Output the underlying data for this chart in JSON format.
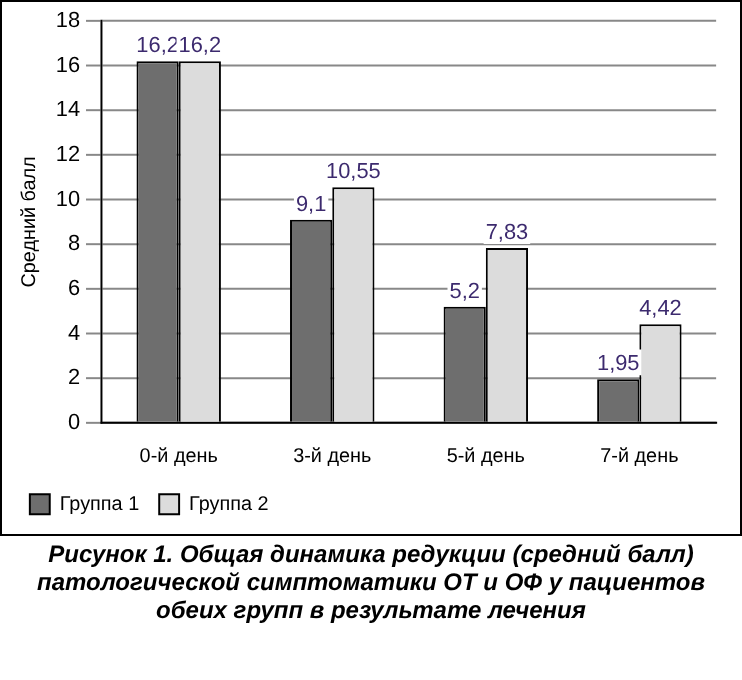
{
  "chart_data": {
    "type": "bar",
    "ylabel": "Средний балл",
    "categories": [
      "0-й день",
      "3-й день",
      "5-й день",
      "7-й день"
    ],
    "series": [
      {
        "name": "Группа 1",
        "color": "#6e6e6e",
        "values": [
          16.2,
          9.1,
          5.2,
          1.95
        ],
        "value_labels": [
          "16,2",
          "9,1",
          "5,2",
          "1,95"
        ]
      },
      {
        "name": "Группа 2",
        "color": "#dcdcdc",
        "values": [
          16.2,
          10.55,
          7.83,
          4.42
        ],
        "value_labels": [
          "16,2",
          "10,55",
          "7,83",
          "4,42"
        ]
      }
    ],
    "ylim": [
      0,
      18
    ],
    "yticks": [
      0,
      2,
      4,
      6,
      8,
      10,
      12,
      14,
      16,
      18
    ],
    "grid": "y",
    "legend": "bottom left",
    "annotations": [
      "Рисунок 1. Общая динамика редукции (средний балл) патологической симптоматики ОТ и ОФ у пациентов обеих групп в результате лечения"
    ]
  }
}
